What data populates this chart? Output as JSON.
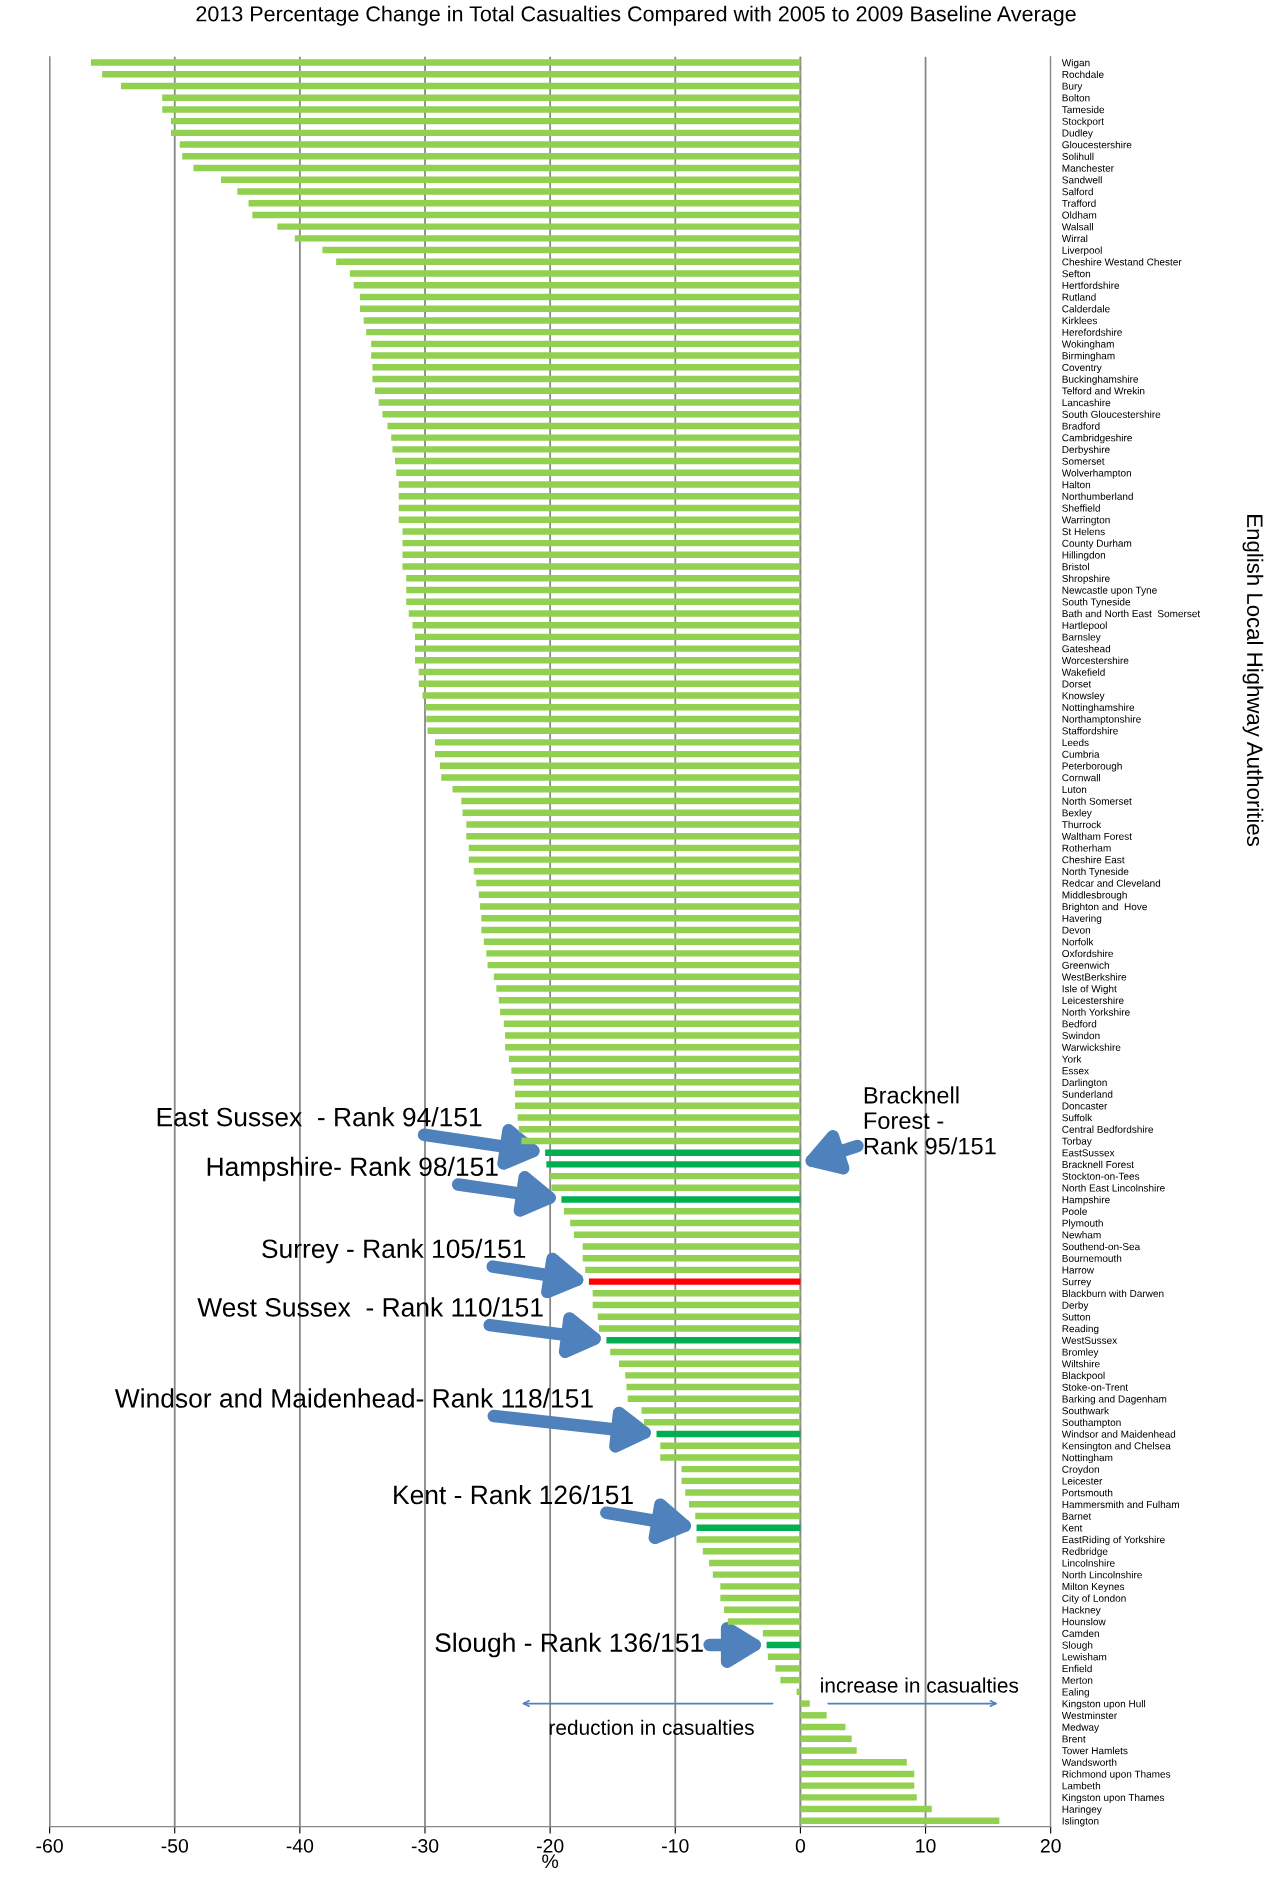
{
  "chart_data": {
    "type": "bar",
    "orientation": "horizontal",
    "title": "2013 Percentage Change in Total Casualties Compared with 2005 to 2009 Baseline Average",
    "xlabel": "%",
    "ylabel": "English Local Highway Authorities",
    "categories": [
      "Wigan",
      "Rochdale",
      "Bury",
      "Bolton",
      "Tameside",
      "Stockport",
      "Dudley",
      "Gloucestershire",
      "Solihull",
      "Manchester",
      "Sandwell",
      "Salford",
      "Trafford",
      "Oldham",
      "Walsall",
      "Wirral",
      "Liverpool",
      "Cheshire Westand Chester",
      "Sefton",
      "Hertfordshire",
      "Rutland",
      "Calderdale",
      "Kirklees",
      "Herefordshire",
      "Wokingham",
      "Birmingham",
      "Coventry",
      "Buckinghamshire",
      "Telford and Wrekin",
      "Lancashire",
      "South Gloucestershire",
      "Bradford",
      "Cambridgeshire",
      "Derbyshire",
      "Somerset",
      "Wolverhampton",
      "Halton",
      "Northumberland",
      "Sheffield",
      "Warrington",
      "St Helens",
      "County Durham",
      "Hillingdon",
      "Bristol",
      "Shropshire",
      "Newcastle upon Tyne",
      "South Tyneside",
      "Bath and North East  Somerset",
      "Hartlepool",
      "Barnsley",
      "Gateshead",
      "Worcestershire",
      "Wakefield",
      "Dorset",
      "Knowsley",
      "Nottinghamshire",
      "Northamptonshire",
      "Staffordshire",
      "Leeds",
      "Cumbria",
      "Peterborough",
      "Cornwall",
      "Luton",
      "North Somerset",
      "Bexley",
      "Thurrock",
      "Waltham Forest",
      "Rotherham",
      "Cheshire East",
      "North Tyneside",
      "Redcar and Cleveland",
      "Middlesbrough",
      "Brighton and  Hove",
      "Havering",
      "Devon",
      "Norfolk",
      "Oxfordshire",
      "Greenwich",
      "WestBerkshire",
      "Isle of Wight",
      "Leicestershire",
      "North Yorkshire",
      "Bedford",
      "Swindon",
      "Warwickshire",
      "York",
      "Essex",
      "Darlington",
      "Sunderland",
      "Doncaster",
      "Suffolk",
      "Central Bedfordshire",
      "Torbay",
      "EastSussex",
      "Bracknell Forest",
      "Stockton-on-Tees",
      "North East Lincolnshire",
      "Hampshire",
      "Poole",
      "Plymouth",
      "Newham",
      "Southend-on-Sea",
      "Bournemouth",
      "Harrow",
      "Surrey",
      "Blackburn with Darwen",
      "Derby",
      "Sutton",
      "Reading",
      "WestSussex",
      "Bromley",
      "Wiltshire",
      "Blackpool",
      "Stoke-on-Trent",
      "Barking and Dagenham",
      "Southwark",
      "Southampton",
      "Windsor and Maidenhead",
      "Kensington and Chelsea",
      "Nottingham",
      "Croydon",
      "Leicester",
      "Portsmouth",
      "Hammersmith and Fulham",
      "Barnet",
      "Kent",
      "EastRiding of Yorkshire",
      "Redbridge",
      "Lincolnshire",
      "North Lincolnshire",
      "Milton Keynes",
      "City of London",
      "Hackney",
      "Hounslow",
      "Camden",
      "Slough",
      "Lewisham",
      "Enfield",
      "Merton",
      "Ealing",
      "Kingston upon Hull",
      "Westminster",
      "Medway",
      "Brent",
      "Tower Hamlets",
      "Wandsworth",
      "Richmond upon Thames",
      "Lambeth",
      "Kingston upon Thames",
      "Haringey",
      "Islington"
    ],
    "values": [
      -56.7,
      -55.8,
      -54.3,
      -51.0,
      -51.0,
      -50.3,
      -50.3,
      -49.6,
      -49.4,
      -48.5,
      -46.3,
      -45.0,
      -44.1,
      -43.8,
      -41.8,
      -40.4,
      -38.2,
      -37.1,
      -36.0,
      -35.7,
      -35.2,
      -35.2,
      -34.9,
      -34.7,
      -34.3,
      -34.3,
      -34.2,
      -34.2,
      -34.0,
      -33.7,
      -33.4,
      -33.0,
      -32.7,
      -32.6,
      -32.4,
      -32.3,
      -32.1,
      -32.1,
      -32.1,
      -32.1,
      -31.8,
      -31.8,
      -31.8,
      -31.8,
      -31.5,
      -31.5,
      -31.5,
      -31.3,
      -31.0,
      -30.8,
      -30.8,
      -30.8,
      -30.5,
      -30.5,
      -30.2,
      -30.0,
      -29.9,
      -29.8,
      -29.2,
      -29.2,
      -28.8,
      -28.7,
      -27.8,
      -27.1,
      -27.0,
      -26.7,
      -26.7,
      -26.5,
      -26.5,
      -26.1,
      -25.9,
      -25.7,
      -25.6,
      -25.5,
      -25.5,
      -25.3,
      -25.1,
      -25.0,
      -24.5,
      -24.3,
      -24.1,
      -24.0,
      -23.7,
      -23.6,
      -23.6,
      -23.3,
      -23.1,
      -22.9,
      -22.8,
      -22.8,
      -22.6,
      -22.5,
      -22.3,
      -20.4,
      -20.3,
      -20.0,
      -19.9,
      -19.1,
      -18.9,
      -18.4,
      -18.1,
      -17.4,
      -17.4,
      -17.2,
      -16.9,
      -16.6,
      -16.6,
      -16.2,
      -16.1,
      -15.5,
      -15.2,
      -14.5,
      -14.0,
      -13.9,
      -13.8,
      -12.7,
      -12.5,
      -11.5,
      -11.2,
      -11.2,
      -9.5,
      -9.5,
      -9.2,
      -8.9,
      -8.4,
      -8.3,
      -8.3,
      -7.8,
      -7.3,
      -7.0,
      -6.4,
      -6.4,
      -6.1,
      -5.8,
      -3.0,
      -2.7,
      -2.6,
      -2.0,
      -1.6,
      -0.3,
      0.75,
      2.1,
      3.6,
      4.1,
      4.5,
      8.5,
      9.1,
      9.1,
      9.3,
      10.5,
      15.9
    ],
    "colors": [
      "#92d050",
      "#92d050",
      "#92d050",
      "#92d050",
      "#92d050",
      "#92d050",
      "#92d050",
      "#92d050",
      "#92d050",
      "#92d050",
      "#92d050",
      "#92d050",
      "#92d050",
      "#92d050",
      "#92d050",
      "#92d050",
      "#92d050",
      "#92d050",
      "#92d050",
      "#92d050",
      "#92d050",
      "#92d050",
      "#92d050",
      "#92d050",
      "#92d050",
      "#92d050",
      "#92d050",
      "#92d050",
      "#92d050",
      "#92d050",
      "#92d050",
      "#92d050",
      "#92d050",
      "#92d050",
      "#92d050",
      "#92d050",
      "#92d050",
      "#92d050",
      "#92d050",
      "#92d050",
      "#92d050",
      "#92d050",
      "#92d050",
      "#92d050",
      "#92d050",
      "#92d050",
      "#92d050",
      "#92d050",
      "#92d050",
      "#92d050",
      "#92d050",
      "#92d050",
      "#92d050",
      "#92d050",
      "#92d050",
      "#92d050",
      "#92d050",
      "#92d050",
      "#92d050",
      "#92d050",
      "#92d050",
      "#92d050",
      "#92d050",
      "#92d050",
      "#92d050",
      "#92d050",
      "#92d050",
      "#92d050",
      "#92d050",
      "#92d050",
      "#92d050",
      "#92d050",
      "#92d050",
      "#92d050",
      "#92d050",
      "#92d050",
      "#92d050",
      "#92d050",
      "#92d050",
      "#92d050",
      "#92d050",
      "#92d050",
      "#92d050",
      "#92d050",
      "#92d050",
      "#92d050",
      "#92d050",
      "#92d050",
      "#92d050",
      "#92d050",
      "#92d050",
      "#92d050",
      "#92d050",
      "#00b050",
      "#00b050",
      "#92d050",
      "#92d050",
      "#00b050",
      "#92d050",
      "#92d050",
      "#92d050",
      "#92d050",
      "#92d050",
      "#92d050",
      "#ff0000",
      "#92d050",
      "#92d050",
      "#92d050",
      "#92d050",
      "#00b050",
      "#92d050",
      "#92d050",
      "#92d050",
      "#92d050",
      "#92d050",
      "#92d050",
      "#92d050",
      "#00b050",
      "#92d050",
      "#92d050",
      "#92d050",
      "#92d050",
      "#92d050",
      "#92d050",
      "#92d050",
      "#00b050",
      "#92d050",
      "#92d050",
      "#92d050",
      "#92d050",
      "#92d050",
      "#92d050",
      "#92d050",
      "#92d050",
      "#92d050",
      "#00b050",
      "#92d050",
      "#92d050",
      "#92d050",
      "#92d050",
      "#92d050",
      "#92d050",
      "#92d050",
      "#92d050",
      "#92d050",
      "#92d050",
      "#92d050",
      "#92d050",
      "#92d050",
      "#92d050",
      "#92d050"
    ],
    "xlim": [
      -60,
      20
    ],
    "xticks": [
      -60,
      -50,
      -40,
      -30,
      -20,
      -10,
      0,
      10,
      20
    ],
    "grid": "x",
    "annotations": [
      {
        "text": "East Sussex  - Rank 94/151",
        "x": -20.4,
        "y": "EastSussex"
      },
      {
        "text": "Bracknell\nForest -\nRank 95/151",
        "x": 0,
        "y": "Bracknell Forest"
      },
      {
        "text": "Hampshire- Rank 98/151",
        "x": -19.1,
        "y": "Hampshire"
      },
      {
        "text": "Surrey - Rank 105/151",
        "x": -16.9,
        "y": "Surrey"
      },
      {
        "text": "West Sussex  - Rank 110/151",
        "x": -15.5,
        "y": "WestSussex"
      },
      {
        "text": "Windsor and Maidenhead- Rank 118/151",
        "x": -11.5,
        "y": "Windsor and Maidenhead"
      },
      {
        "text": "Kent - Rank 126/151",
        "x": -8.3,
        "y": "Kent"
      },
      {
        "text": "Slough - Rank 136/151",
        "x": -2.7,
        "y": "Slough"
      },
      "increase in casualties",
      "reduction in casualties"
    ]
  }
}
